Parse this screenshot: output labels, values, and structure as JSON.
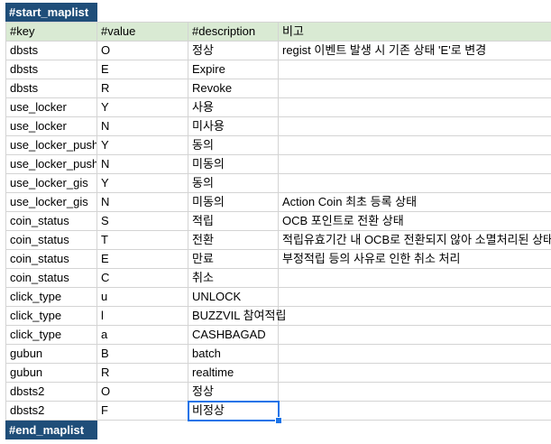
{
  "sheet": {
    "start_marker": "#start_maplist",
    "end_marker": "#end_maplist",
    "headers": [
      "#key",
      "#value",
      "#description",
      "비고"
    ],
    "rows": [
      [
        "dbsts",
        "O",
        "정상",
        "regist 이벤트 발생 시 기존 상태 'E'로 변경"
      ],
      [
        "dbsts",
        "E",
        "Expire",
        ""
      ],
      [
        "dbsts",
        "R",
        "Revoke",
        ""
      ],
      [
        "use_locker",
        "Y",
        "사용",
        ""
      ],
      [
        "use_locker",
        "N",
        "미사용",
        ""
      ],
      [
        "use_locker_push",
        "Y",
        "동의",
        ""
      ],
      [
        "use_locker_push",
        "N",
        "미동의",
        ""
      ],
      [
        "use_locker_gis",
        "Y",
        "동의",
        ""
      ],
      [
        "use_locker_gis",
        "N",
        "미동의",
        "Action Coin 최초 등록 상태"
      ],
      [
        "coin_status",
        "S",
        "적립",
        "OCB 포인트로 전환 상태"
      ],
      [
        "coin_status",
        "T",
        "전환",
        "적립유효기간 내 OCB로 전환되지 않아 소멸처리된 상태"
      ],
      [
        "coin_status",
        "E",
        "만료",
        "부정적립 등의 사유로 인한 취소 처리"
      ],
      [
        "coin_status",
        "C",
        "취소",
        ""
      ],
      [
        "click_type",
        "u",
        "UNLOCK",
        ""
      ],
      [
        "click_type",
        "l",
        "BUZZVIL 참여적립",
        ""
      ],
      [
        "click_type",
        "a",
        "CASHBAGAD",
        ""
      ],
      [
        "gubun",
        "B",
        "batch",
        ""
      ],
      [
        "gubun",
        "R",
        "realtime",
        ""
      ],
      [
        "dbsts2",
        "O",
        "정상",
        ""
      ],
      [
        "dbsts2",
        "F",
        "비정상",
        ""
      ]
    ],
    "colors": {
      "marker_bg": "#1f4e79",
      "header_bg": "#d9ead3",
      "grid": "#d4d4d4",
      "selection": "#1a73e8"
    }
  }
}
